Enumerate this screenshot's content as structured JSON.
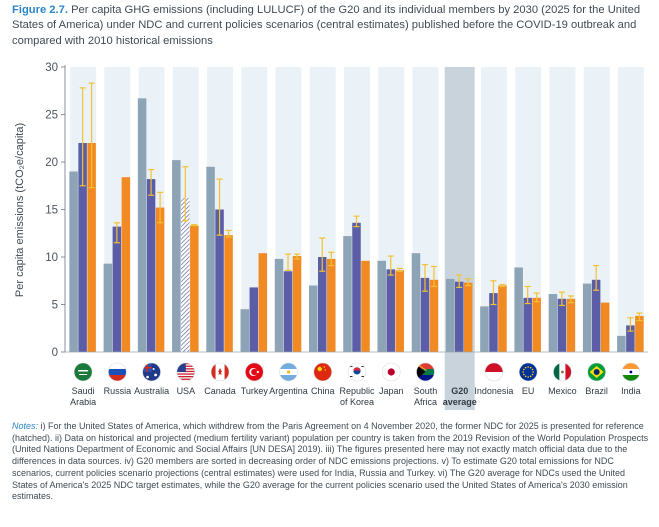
{
  "caption": {
    "label": "Figure 2.7.",
    "text": "Per capita GHG emissions (including LULUCF) of the G20 and its individual members by 2030 (2025 for the United States of America) under NDC and current policies scenarios (central estimates) published before the COVID-19 outbreak and compared with 2010 historical emissions"
  },
  "notes": {
    "label": "Notes:",
    "text": " i) For the United States of America, which withdrew from the Paris Agreement on 4 November 2020, the former NDC for 2025 is presented for reference (hatched). ii) Data on historical and projected (medium fertility variant) population per country is taken from the 2019 Revision of the World Population Prospects (United Nations Department of Economic and Social Affairs [UN DESA] 2019). iii) The figures presented here may not exactly match official data due to the differences in data sources. iv) G20 members are sorted in decreasing order of NDC emissions projections. v) To estimate G20 total emissions for NDC scenarios, current policies scenario projections (central estimates) were used for India, Russia and Turkey. vi) The G20 average for NDCs used the United States of America's 2025 NDC target estimates, while the G20 average for the current policies scenario used the United States of America's 2030 emission estimates."
  },
  "colors": {
    "historical": "#8da3b6",
    "ndc": "#5b5ea6",
    "current_policies": "#f28a24",
    "error_bar": "#f2c230",
    "column_shade": "#eaf2f8",
    "g20_shade": "#c9d3db",
    "axis_text": "#4a5560"
  },
  "chart_data": {
    "type": "bar",
    "ylabel": "Per capita emissions (tCO₂e/capita)",
    "ylim": [
      0,
      30
    ],
    "yticks": [
      0,
      5,
      10,
      15,
      20,
      25,
      30
    ],
    "grid": false,
    "categories": [
      {
        "lines": [
          "Saudi",
          "Arabia"
        ],
        "icon": "flag-saudi-arabia-icon",
        "flag": "sa",
        "bold": false
      },
      {
        "lines": [
          "Russia"
        ],
        "icon": "flag-russia-icon",
        "flag": "ru",
        "bold": false
      },
      {
        "lines": [
          "Australia"
        ],
        "icon": "flag-australia-icon",
        "flag": "au",
        "bold": false
      },
      {
        "lines": [
          "USA"
        ],
        "icon": "flag-usa-icon",
        "flag": "us",
        "bold": false
      },
      {
        "lines": [
          "Canada"
        ],
        "icon": "flag-canada-icon",
        "flag": "ca",
        "bold": false
      },
      {
        "lines": [
          "Turkey"
        ],
        "icon": "flag-turkey-icon",
        "flag": "tr",
        "bold": false
      },
      {
        "lines": [
          "Argentina"
        ],
        "icon": "flag-argentina-icon",
        "flag": "ar",
        "bold": false
      },
      {
        "lines": [
          "China"
        ],
        "icon": "flag-china-icon",
        "flag": "cn",
        "bold": false
      },
      {
        "lines": [
          "Republic",
          "of Korea"
        ],
        "icon": "flag-korea-icon",
        "flag": "kr",
        "bold": false
      },
      {
        "lines": [
          "Japan"
        ],
        "icon": "flag-japan-icon",
        "flag": "jp",
        "bold": false
      },
      {
        "lines": [
          "South",
          "Africa"
        ],
        "icon": "flag-south-africa-icon",
        "flag": "za",
        "bold": false
      },
      {
        "lines": [
          "G20",
          "average"
        ],
        "icon": "",
        "flag": "",
        "bold": true
      },
      {
        "lines": [
          "Indonesia"
        ],
        "icon": "flag-indonesia-icon",
        "flag": "id",
        "bold": false
      },
      {
        "lines": [
          "EU"
        ],
        "icon": "flag-eu-icon",
        "flag": "eu",
        "bold": false
      },
      {
        "lines": [
          "Mexico"
        ],
        "icon": "flag-mexico-icon",
        "flag": "mx",
        "bold": false
      },
      {
        "lines": [
          "Brazil"
        ],
        "icon": "flag-brazil-icon",
        "flag": "br",
        "bold": false
      },
      {
        "lines": [
          "India"
        ],
        "icon": "flag-india-icon",
        "flag": "in",
        "bold": false
      }
    ],
    "series": [
      {
        "key": "historical",
        "values": [
          19.0,
          9.3,
          26.7,
          20.2,
          19.5,
          4.5,
          9.8,
          7.0,
          12.2,
          9.6,
          10.4,
          7.7,
          4.8,
          8.9,
          6.1,
          7.2,
          1.7
        ]
      },
      {
        "key": "ndc",
        "values": [
          22.0,
          13.2,
          18.2,
          16.2,
          15.0,
          6.8,
          8.5,
          10.0,
          13.6,
          8.7,
          7.8,
          7.4,
          6.2,
          5.7,
          5.6,
          7.6,
          2.8
        ]
      },
      {
        "key": "current_policies",
        "values": [
          22.0,
          18.4,
          15.2,
          13.3,
          12.3,
          10.4,
          10.1,
          9.8,
          9.6,
          8.6,
          7.6,
          7.3,
          7.0,
          5.7,
          5.6,
          5.2,
          3.8
        ]
      }
    ],
    "ranges": {
      "ndc": [
        [
          17.5,
          27.8
        ],
        [
          11.5,
          13.6
        ],
        [
          16.5,
          19.2
        ],
        [
          13.8,
          19.5
        ],
        [
          12.3,
          18.2
        ],
        null,
        [
          8.6,
          10.3
        ],
        [
          8.5,
          12.0
        ],
        [
          13.2,
          14.3
        ],
        [
          8.1,
          10.1
        ],
        [
          6.4,
          9.2
        ],
        [
          6.8,
          8.1
        ],
        [
          5.0,
          7.5
        ],
        [
          5.1,
          6.9
        ],
        [
          4.9,
          6.3
        ],
        [
          6.5,
          9.1
        ],
        [
          2.2,
          3.6
        ]
      ],
      "current_policies": [
        [
          17.3,
          28.3
        ],
        null,
        [
          13.6,
          16.8
        ],
        [
          13.3,
          13.4
        ],
        [
          12.1,
          12.8
        ],
        null,
        [
          9.8,
          10.3
        ],
        [
          9.1,
          10.5
        ],
        null,
        [
          8.5,
          8.8
        ],
        [
          6.9,
          9.0
        ],
        [
          7.0,
          7.7
        ],
        [
          6.9,
          7.1
        ],
        [
          5.3,
          6.2
        ],
        [
          5.2,
          5.9
        ],
        null,
        [
          3.3,
          4.1
        ]
      ]
    },
    "hatched": {
      "category": "USA",
      "series": "ndc"
    }
  }
}
